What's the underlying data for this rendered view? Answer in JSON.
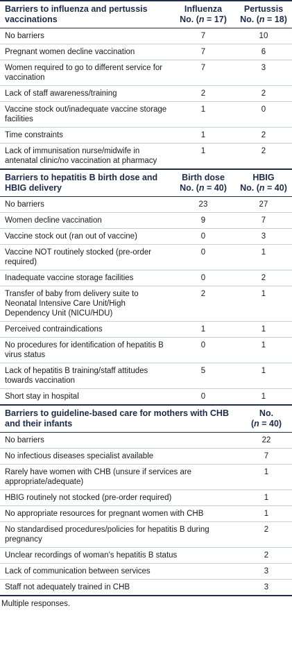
{
  "sections": [
    {
      "heading": "Barriers to influenza and pertussis vaccinations",
      "col1_title": "Influenza",
      "col1_sub": "No. (n = 17)",
      "col2_title": "Pertussis",
      "col2_sub": "No. (n = 18)",
      "rows": [
        {
          "label": "No barriers",
          "v1": "7",
          "v2": "10"
        },
        {
          "label": "Pregnant women decline vaccination",
          "v1": "7",
          "v2": "6"
        },
        {
          "label": "Women required to go to different service for vaccination",
          "v1": "7",
          "v2": "3"
        },
        {
          "label": "Lack of staff awareness/training",
          "v1": "2",
          "v2": "2"
        },
        {
          "label": "Vaccine stock out/inadequate vaccine storage facilities",
          "v1": "1",
          "v2": "0"
        },
        {
          "label": "Time constraints",
          "v1": "1",
          "v2": "2"
        },
        {
          "label": "Lack of immunisation nurse/midwife in antenatal clinic/no vaccination at pharmacy",
          "v1": "1",
          "v2": "2"
        }
      ]
    },
    {
      "heading": "Barriers to hepatitis B birth dose and HBIG delivery",
      "col1_title": "Birth dose",
      "col1_sub": "No. (n = 40)",
      "col2_title": "HBIG",
      "col2_sub": "No. (n = 40)",
      "rows": [
        {
          "label": "No barriers",
          "v1": "23",
          "v2": "27"
        },
        {
          "label": "Women decline vaccination",
          "v1": "9",
          "v2": "7"
        },
        {
          "label": "Vaccine stock out (ran out of vaccine)",
          "v1": "0",
          "v2": "3"
        },
        {
          "label": "Vaccine NOT routinely stocked (pre-order required)",
          "v1": "0",
          "v2": "1"
        },
        {
          "label": "Inadequate vaccine storage facilities",
          "v1": "0",
          "v2": "2"
        },
        {
          "label": "Transfer of baby from delivery suite to Neonatal Intensive Care Unit/High Dependency Unit (NICU/HDU)",
          "v1": "2",
          "v2": "1"
        },
        {
          "label": "Perceived contraindications",
          "v1": "1",
          "v2": "1"
        },
        {
          "label": "No procedures for identification of hepatitis B virus status",
          "v1": "0",
          "v2": "1"
        },
        {
          "label": "Lack of hepatitis B training/staff attitudes towards vaccination",
          "v1": "5",
          "v2": "1"
        },
        {
          "label": "Short stay in hospital",
          "v1": "0",
          "v2": "1"
        }
      ]
    },
    {
      "heading": "Barriers to guideline-based care for mothers with CHB and their infants",
      "col1_title": "No.",
      "col1_sub": "(n = 40)",
      "rows": [
        {
          "label": "No barriers",
          "v1": "22"
        },
        {
          "label": "No infectious diseases specialist available",
          "v1": "7"
        },
        {
          "label": "Rarely have women with CHB (unsure if services are appropriate/adequate)",
          "v1": "1"
        },
        {
          "label": "HBIG routinely not stocked (pre-order required)",
          "v1": "1"
        },
        {
          "label": "No appropriate resources for pregnant women with CHB",
          "v1": "1"
        },
        {
          "label": "No standardised procedures/policies for hepatitis B during pregnancy",
          "v1": "2"
        },
        {
          "label": "Unclear recordings of woman's hepatitis B status",
          "v1": "2"
        },
        {
          "label": "Lack of communication between services",
          "v1": "3"
        },
        {
          "label": "Staff not adequately trained in CHB",
          "v1": "3"
        }
      ]
    }
  ],
  "footnote": "Multiple responses."
}
